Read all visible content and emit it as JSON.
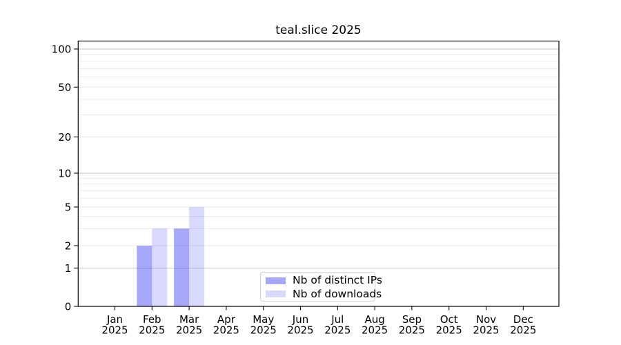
{
  "title": "teal.slice 2025",
  "legend": {
    "items": [
      {
        "label": "Nb of distinct IPs",
        "color": "rgba(0,0,240,0.34)"
      },
      {
        "label": "Nb of downloads",
        "color": "rgba(0,0,240,0.15)"
      }
    ]
  },
  "chart_data": {
    "type": "bar",
    "title": "teal.slice 2025",
    "categories": [
      "Jan 2025",
      "Feb 2025",
      "Mar 2025",
      "Apr 2025",
      "May 2025",
      "Jun 2025",
      "Jul 2025",
      "Aug 2025",
      "Sep 2025",
      "Oct 2025",
      "Nov 2025",
      "Dec 2025"
    ],
    "series": [
      {
        "name": "Nb of distinct IPs",
        "color": "rgba(0,0,240,0.34)",
        "values": [
          0,
          2,
          3,
          0,
          0,
          0,
          0,
          0,
          0,
          0,
          0,
          0
        ]
      },
      {
        "name": "Nb of downloads",
        "color": "rgba(0,0,240,0.15)",
        "values": [
          0,
          3,
          5,
          0,
          0,
          0,
          0,
          0,
          0,
          0,
          0,
          0
        ]
      }
    ],
    "yscale": "symlog",
    "ylim": [
      0,
      115
    ],
    "y_ticks": [
      0,
      1,
      2,
      5,
      10,
      20,
      50,
      100
    ],
    "y_minor_ticks": [
      3,
      4,
      6,
      7,
      8,
      9,
      30,
      40,
      60,
      70,
      80,
      90
    ],
    "grid": "horizontal",
    "legend_position": "lower center inside",
    "colors": {
      "decade_gridline": "#c6c6c6",
      "minor_gridline": "#ececec",
      "axis": "#000000",
      "background": "#ffffff"
    }
  }
}
